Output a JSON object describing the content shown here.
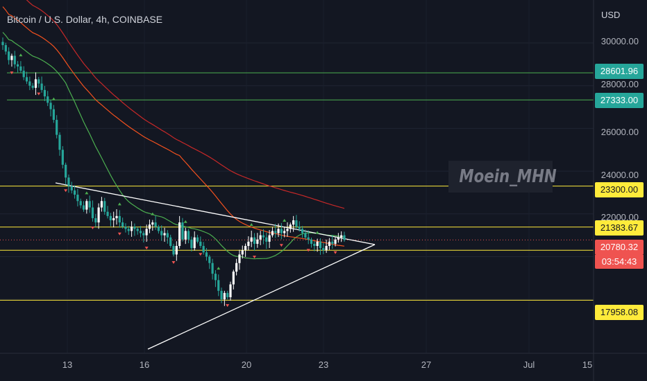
{
  "header": {
    "title": "Bitcoin / U.S. Dollar, 4h, COINBASE"
  },
  "price_axis": {
    "currency": "USD",
    "labels": [
      "30000.00",
      "28000.00",
      "26000.00",
      "24000.00",
      "22000.00"
    ]
  },
  "time_axis": {
    "labels": [
      "13",
      "16",
      "20",
      "23",
      "27",
      "Jul",
      "15"
    ]
  },
  "watermark": "Moein_MHN",
  "price_tags": [
    {
      "id": "tag-28601",
      "text": "28601.96",
      "price": 28601.96,
      "bg": "#26a69a",
      "fg": "#ffffff"
    },
    {
      "id": "tag-27333",
      "text": "27333.00",
      "price": 27333.0,
      "bg": "#26a69a",
      "fg": "#ffffff"
    },
    {
      "id": "tag-23300",
      "text": "23300.00",
      "price": 23300.0,
      "bg": "#ffeb3b",
      "fg": "#131722"
    },
    {
      "id": "tag-21383",
      "text": "21383.67",
      "price": 21383.67,
      "bg": "#ffeb3b",
      "fg": "#131722"
    },
    {
      "id": "tag-current",
      "text": "20780.32",
      "price": 20780.32,
      "bg": "#ef5350",
      "fg": "#ffffff"
    },
    {
      "id": "tag-17958",
      "text": "17958.08",
      "price": 17958.08,
      "bg": "#ffeb3b",
      "fg": "#131722"
    }
  ],
  "countdown": {
    "text": "03:54:43",
    "bg": "#ef5350",
    "fg": "#ffffff"
  },
  "colors": {
    "background": "#131722",
    "up_candle": "#ffffff",
    "down_candle": "#26a69a",
    "support_resistance": "#ffeb3b",
    "green_level": "#4caf50",
    "triangle": "#ffffff",
    "ma_fast": "#4caf50",
    "ma_mid": "#f4511e",
    "ma_slow": "#c62828"
  },
  "chart_data": {
    "type": "candlestick",
    "title": "Bitcoin / U.S. Dollar, 4h, COINBASE",
    "ylim": [
      15800,
      31200
    ],
    "horizontal_levels": [
      {
        "price": 28601.96,
        "color": "green"
      },
      {
        "price": 27333.0,
        "color": "green"
      },
      {
        "price": 23300.0,
        "color": "yellow"
      },
      {
        "price": 21383.67,
        "color": "yellow"
      },
      {
        "price": 20300.0,
        "color": "yellow"
      },
      {
        "price": 17958.08,
        "color": "yellow"
      }
    ],
    "current_price": 20780.32,
    "close_series": [
      29900,
      29600,
      29200,
      29400,
      29000,
      28900,
      28700,
      28400,
      28200,
      28000,
      27900,
      28300,
      28100,
      27800,
      27500,
      27200,
      26900,
      26400,
      25700,
      25000,
      24300,
      23700,
      23300,
      23100,
      22900,
      22600,
      22400,
      22200,
      22600,
      22300,
      21800,
      21600,
      22300,
      22600,
      22100,
      21900,
      21700,
      21800,
      21900,
      21600,
      21400,
      21300,
      21200,
      21400,
      21300,
      21200,
      21100,
      21000,
      21300,
      21500,
      21600,
      21400,
      21200,
      21000,
      21100,
      20900,
      20500,
      20100,
      20500,
      21600,
      20800,
      21200,
      20800,
      20400,
      20900,
      20700,
      20500,
      20200,
      20000,
      19700,
      19200,
      18900,
      18400,
      18000,
      18300,
      18100,
      18700,
      19300,
      19700,
      20100,
      20300,
      20500,
      20700,
      20900,
      20600,
      20800,
      21000,
      20900,
      20700,
      21000,
      21200,
      21100,
      21300,
      21100,
      21200,
      21300,
      21500,
      21700,
      21400,
      21300,
      21100,
      20900,
      20800,
      20600,
      20500,
      20700,
      20400,
      20300,
      20500,
      20700,
      20600,
      20800,
      20900,
      21000,
      20780
    ]
  }
}
